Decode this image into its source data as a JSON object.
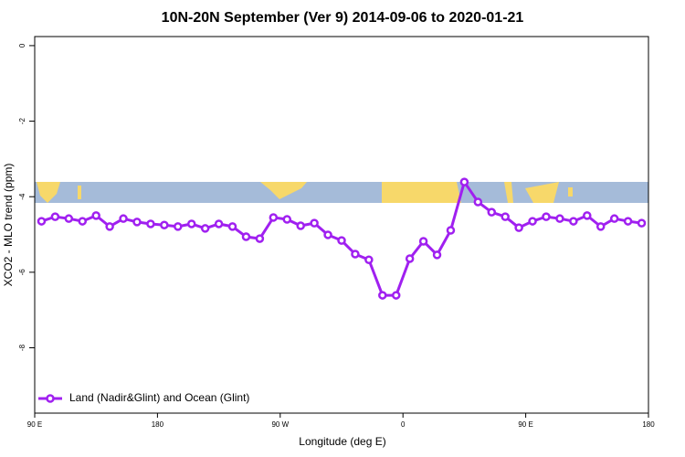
{
  "chart_data": {
    "type": "line",
    "title": "10N-20N September (Ver 9)   2014-09-06 to 2020-01-21",
    "x_label": "Longitude (deg E)",
    "y_label": "XCO2 - MLO trend (ppm)",
    "x": [
      95,
      105,
      115,
      125,
      135,
      145,
      155,
      165,
      175,
      185,
      195,
      205,
      215,
      225,
      235,
      245,
      255,
      265,
      275,
      285,
      295,
      305,
      315,
      325,
      335,
      345,
      355,
      365,
      375,
      385,
      395,
      405,
      415,
      425,
      435,
      445,
      455,
      465,
      475,
      485,
      495,
      505,
      515,
      525,
      535
    ],
    "series": [
      {
        "name": "Land (Nadir&Glint) and Ocean (Glint)",
        "color": "#a020f0",
        "values": [
          -4.65,
          -4.53,
          -4.58,
          -4.65,
          -4.5,
          -4.79,
          -4.58,
          -4.67,
          -4.72,
          -4.75,
          -4.79,
          -4.72,
          -4.84,
          -4.72,
          -4.79,
          -5.06,
          -5.11,
          -4.55,
          -4.6,
          -4.77,
          -4.7,
          -5.01,
          -5.16,
          -5.52,
          -5.67,
          -6.61,
          -6.61,
          -5.64,
          -5.18,
          -5.54,
          -4.89,
          -3.61,
          -4.14,
          -4.41,
          -4.53,
          -4.82,
          -4.65,
          -4.53,
          -4.58,
          -4.65,
          -4.5,
          -4.79,
          -4.58,
          -4.65,
          -4.7
        ]
      }
    ],
    "xlim": [
      90,
      540
    ],
    "xticks": [
      {
        "value": 90,
        "label": "90 E"
      },
      180,
      {
        "value": 270,
        "label": "90 W"
      },
      {
        "value": 360,
        "label": "0"
      },
      {
        "value": 450,
        "label": "90 E"
      },
      {
        "value": 540,
        "label": "180"
      }
    ],
    "ylim": [
      -9.73,
      0.24
    ],
    "yticks": [
      0,
      -2,
      -4,
      -6,
      -8
    ],
    "legend": "bottom-left"
  }
}
